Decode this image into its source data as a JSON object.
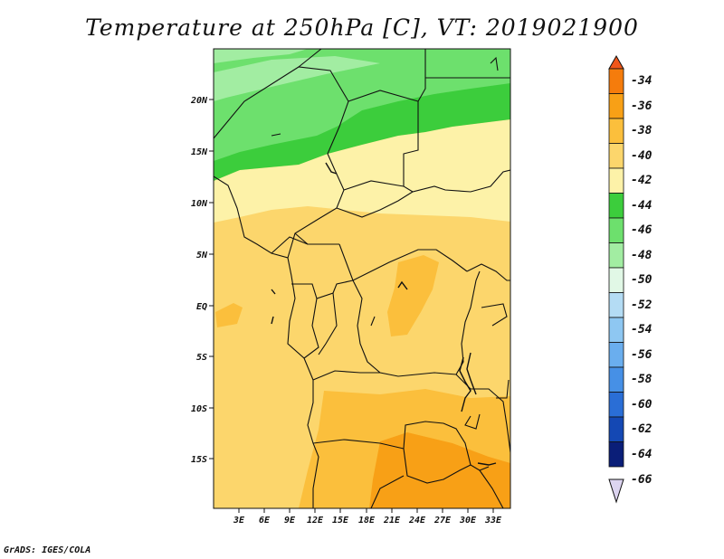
{
  "title": "Temperature at 250hPa [C], VT: 2019021900",
  "credit": "GrADS: IGES/COLA",
  "map": {
    "lat_labels": [
      "20N",
      "15N",
      "10N",
      "5N",
      "EQ",
      "5S",
      "10S",
      "15S"
    ],
    "lon_labels": [
      "3E",
      "6E",
      "9E",
      "12E",
      "15E",
      "18E",
      "21E",
      "24E",
      "27E",
      "30E",
      "33E"
    ]
  },
  "colorbar": {
    "labels": [
      "-34",
      "-36",
      "-38",
      "-40",
      "-42",
      "-44",
      "-46",
      "-48",
      "-50",
      "-52",
      "-54",
      "-56",
      "-58",
      "-60",
      "-62",
      "-64",
      "-66"
    ],
    "colors": [
      "#f0561a",
      "#f57c0c",
      "#f8a016",
      "#fbbf3c",
      "#fcd66c",
      "#fdf2a8",
      "#3ccd3c",
      "#6de06d",
      "#a2eda2",
      "#e1f8e6",
      "#b4dcf4",
      "#8ec7f2",
      "#6aaeee",
      "#4690e6",
      "#2a6ed6",
      "#1448b4",
      "#0a1e78",
      "#dcd4f0"
    ],
    "top_color": "#f0561a",
    "bottom_color": "#dcd4f0"
  }
}
